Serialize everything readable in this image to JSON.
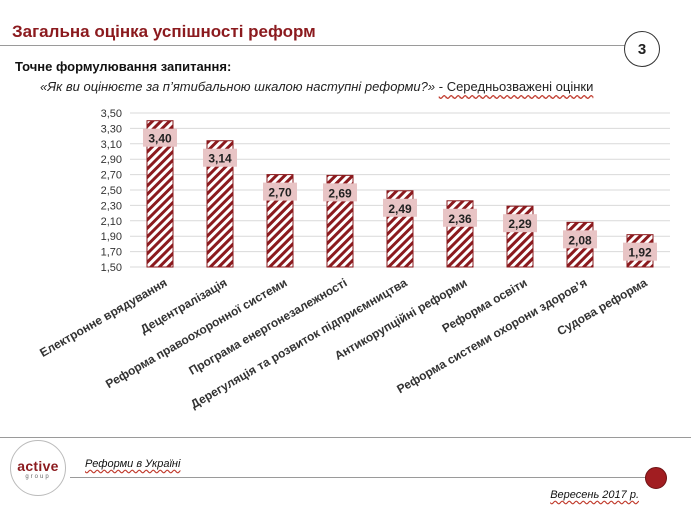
{
  "header": {
    "title": "Загальна оцінка успішності реформ",
    "page_number": "3"
  },
  "question": {
    "heading": "Точне формулювання запитання:",
    "text": "«Як ви оцінюєте за п’ятибальною шкалою наступні реформи?»",
    "note": " - Середньозважені оцінки"
  },
  "footer": {
    "logo_text": "active",
    "logo_subtext": "group",
    "series_name": "Реформи в Україні",
    "date": "Вересень 2017 р."
  },
  "colors": {
    "accent": "#8b1a1e",
    "bar_stripe": "#8b1a1e",
    "label_bg": "#e8c4c5",
    "grid": "#d9d9d9"
  },
  "chart_data": {
    "type": "bar",
    "title": "",
    "xlabel": "",
    "ylabel": "",
    "ylim": [
      1.5,
      3.5
    ],
    "ytick_step": 0.2,
    "yticks": [
      "1,50",
      "1,70",
      "1,90",
      "2,10",
      "2,30",
      "2,50",
      "2,70",
      "2,90",
      "3,10",
      "3,30",
      "3,50"
    ],
    "grid": true,
    "categories": [
      "Електронне врядування",
      "Децентралізація",
      "Реформа правоохоронної системи",
      "Програма енергонезалежності",
      "Дерегуляція та розвиток підприємництва",
      "Антикорупційні реформи",
      "Реформа освіти",
      "Реформа системи охорони здоров’я",
      "Судова реформа"
    ],
    "values": [
      3.4,
      3.14,
      2.7,
      2.69,
      2.49,
      2.36,
      2.29,
      2.08,
      1.92
    ],
    "value_labels": [
      "3,40",
      "3,14",
      "2,70",
      "2,69",
      "2,49",
      "2,36",
      "2,29",
      "2,08",
      "1,92"
    ]
  }
}
